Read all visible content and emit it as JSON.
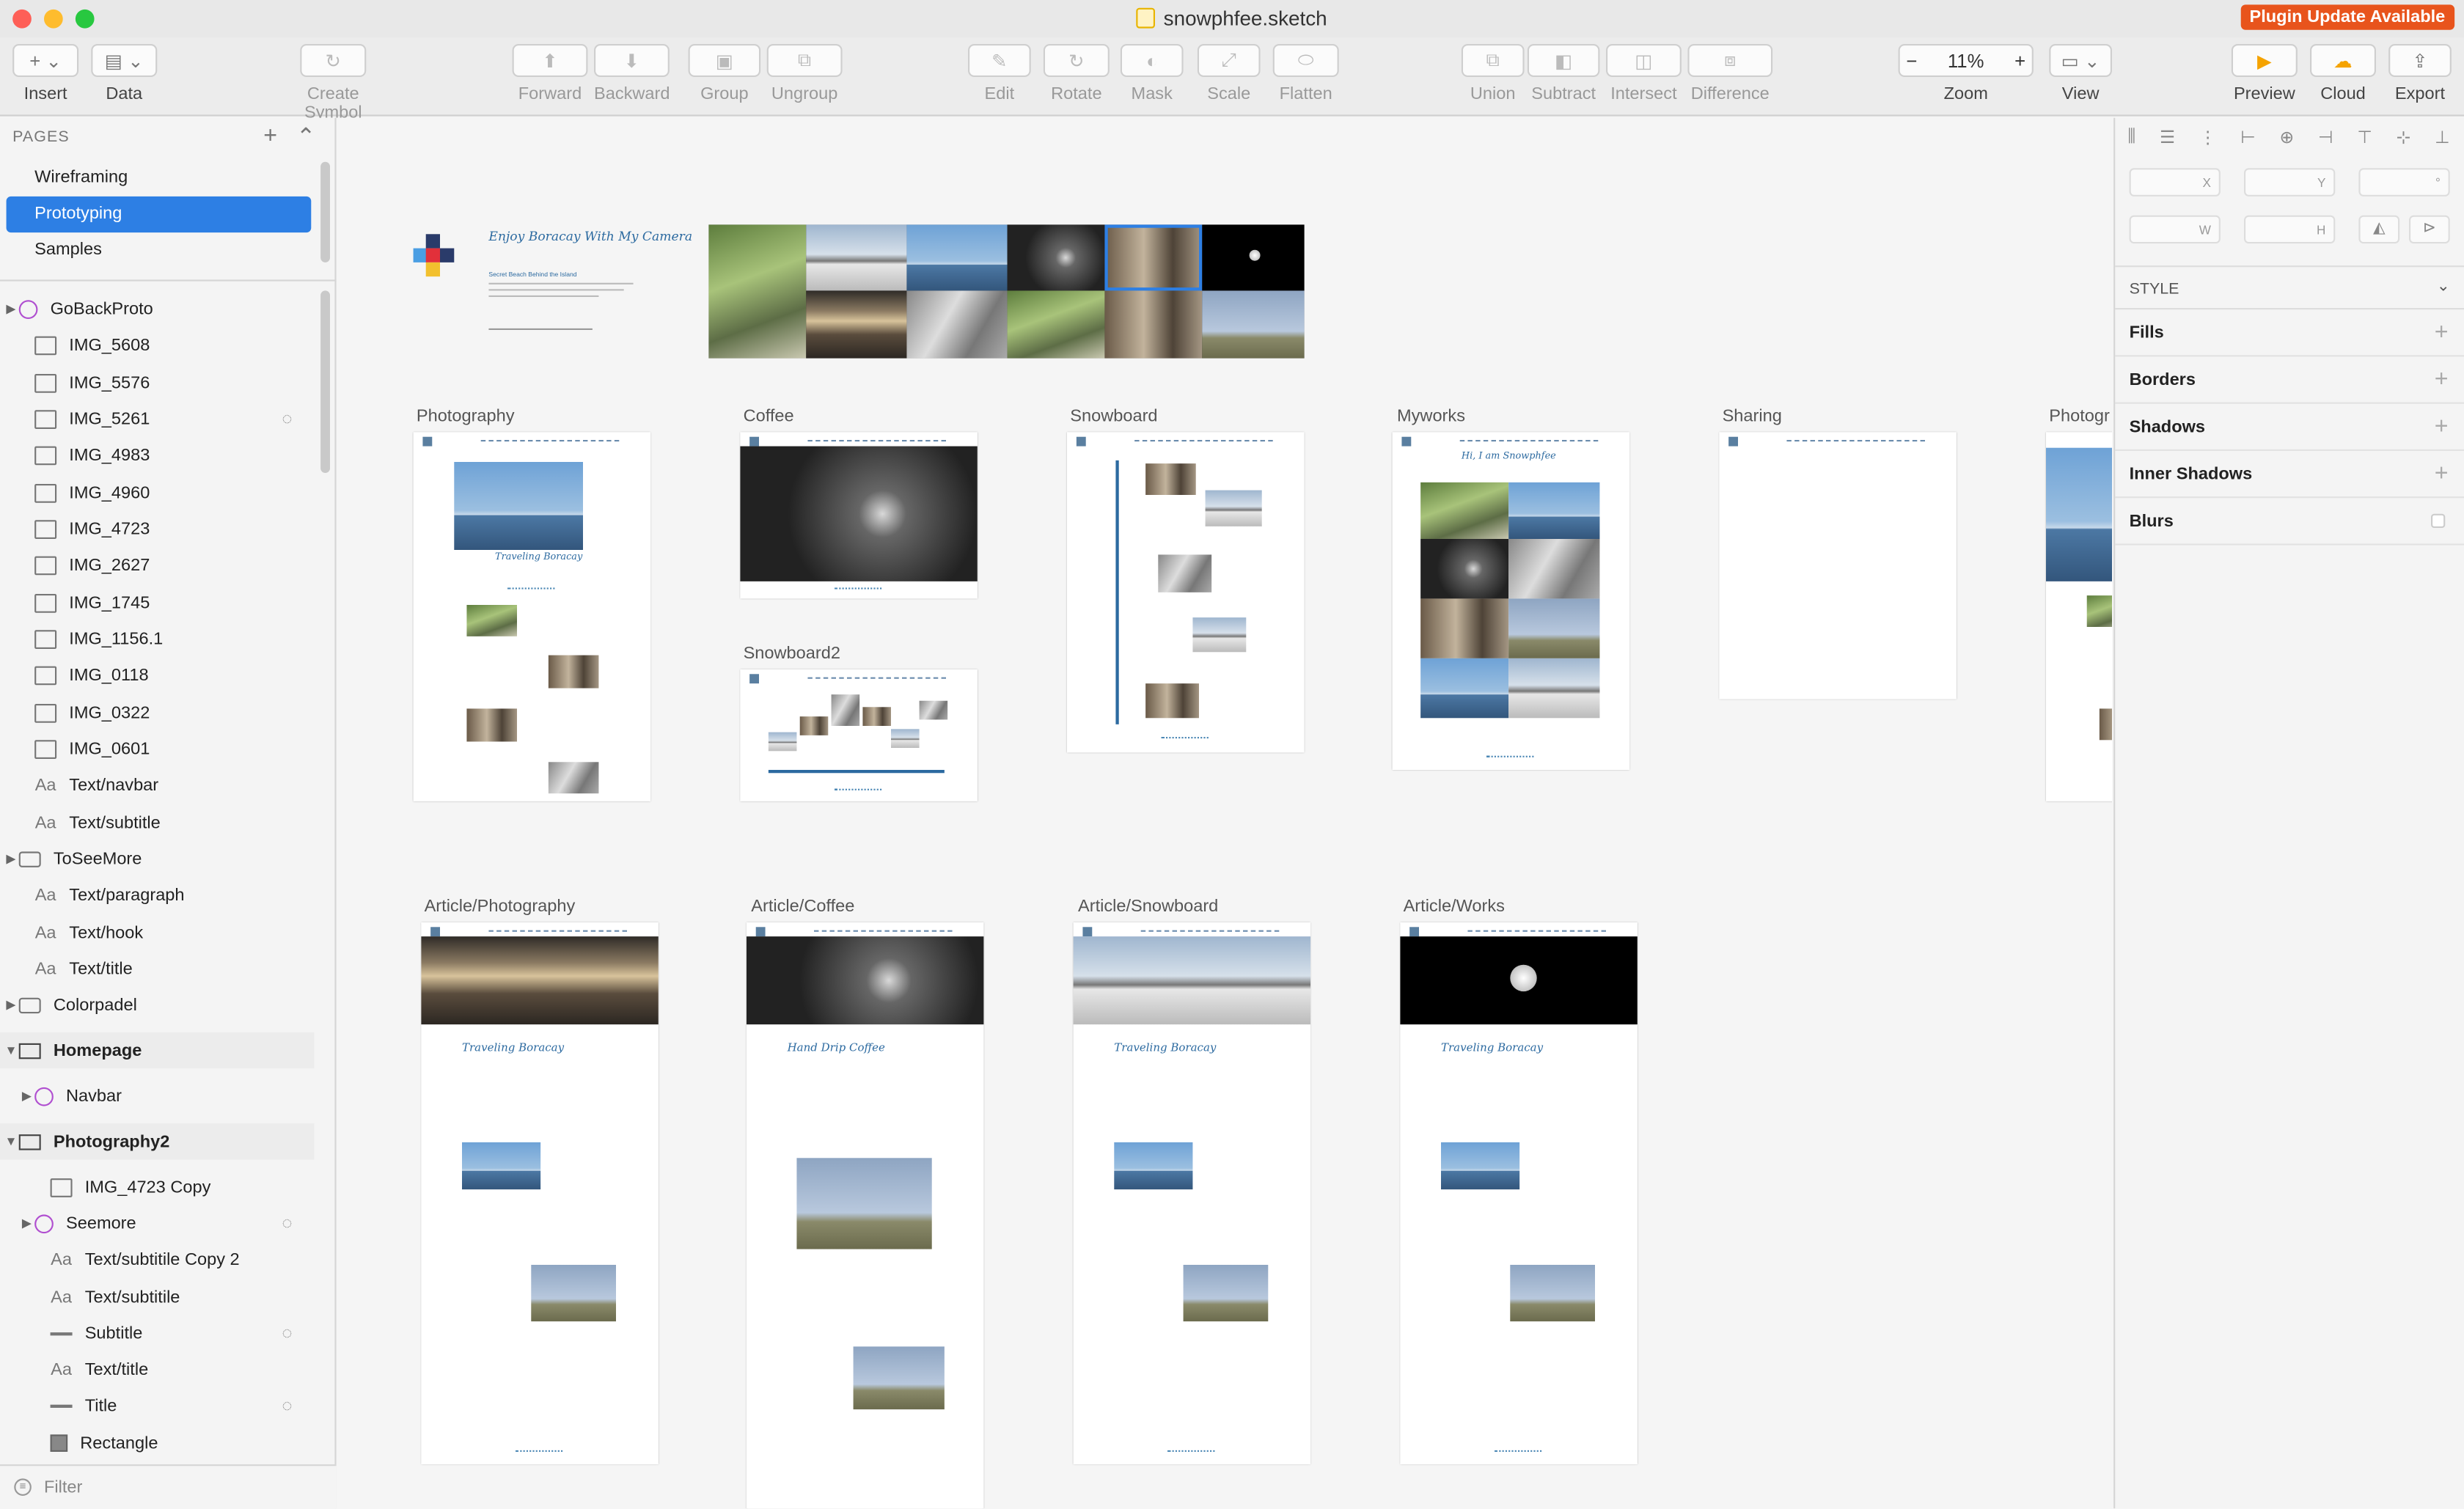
{
  "window": {
    "title": "snowphfee.sketch",
    "plugin_badge": "Plugin Update Available"
  },
  "toolbar": {
    "insert": "Insert",
    "data": "Data",
    "create_symbol": "Create Symbol",
    "forward": "Forward",
    "backward": "Backward",
    "group": "Group",
    "ungroup": "Ungroup",
    "edit": "Edit",
    "rotate": "Rotate",
    "mask": "Mask",
    "scale": "Scale",
    "flatten": "Flatten",
    "union": "Union",
    "subtract": "Subtract",
    "intersect": "Intersect",
    "difference": "Difference",
    "zoom_value": "11%",
    "zoom": "Zoom",
    "view": "View",
    "preview": "Preview",
    "cloud": "Cloud",
    "export": "Export",
    "zoom_minus": "−",
    "zoom_plus": "+",
    "insert_glyph": "+",
    "chevron": "⌄"
  },
  "pages": {
    "heading": "PAGES",
    "add": "+",
    "collapse": "⌃",
    "items": [
      {
        "label": "Wireframing"
      },
      {
        "label": "Prototyping"
      },
      {
        "label": "Samples"
      }
    ]
  },
  "layers": [
    {
      "label": "GoBackProto"
    },
    {
      "label": "IMG_5608"
    },
    {
      "label": "IMG_5576"
    },
    {
      "label": "IMG_5261"
    },
    {
      "label": "IMG_4983"
    },
    {
      "label": "IMG_4960"
    },
    {
      "label": "IMG_4723"
    },
    {
      "label": "IMG_2627"
    },
    {
      "label": "IMG_1745"
    },
    {
      "label": "IMG_1156.1"
    },
    {
      "label": "IMG_0118"
    },
    {
      "label": "IMG_0322"
    },
    {
      "label": "IMG_0601"
    },
    {
      "label": "Text/navbar"
    },
    {
      "label": "Text/subtitle"
    },
    {
      "label": "ToSeeMore"
    },
    {
      "label": "Text/paragraph"
    },
    {
      "label": "Text/hook"
    },
    {
      "label": "Text/title"
    },
    {
      "label": "Colorpadel"
    },
    {
      "label": "Homepage"
    },
    {
      "label": "Navbar"
    },
    {
      "label": "Photography2"
    },
    {
      "label": "IMG_4723 Copy"
    },
    {
      "label": "Seemore"
    },
    {
      "label": "Text/subtitile Copy 2"
    },
    {
      "label": "Text/subtitile"
    },
    {
      "label": "Subtitle"
    },
    {
      "label": "Text/title"
    },
    {
      "label": "Title"
    },
    {
      "label": "Rectangle"
    }
  ],
  "layer_glyphs": {
    "text": "Aa",
    "hidden": "◌"
  },
  "filter": {
    "placeholder": "Filter"
  },
  "canvas": {
    "hero_title": "Enjoy Boracay With My Camera",
    "hero_subtitle": "Secret Beach Behind the Island",
    "artboards": {
      "photography": "Photography",
      "coffee": "Coffee",
      "snowboard": "Snowboard",
      "snowboard2": "Snowboard2",
      "myworks": "Myworks",
      "sharing": "Sharing",
      "photography_clipped": "Photogr",
      "article_photography": "Article/Photography",
      "article_coffee": "Article/Coffee",
      "article_snowboard": "Article/Snowboard",
      "article_works": "Article/Works"
    },
    "photo_title": "Traveling Boracay",
    "myworks_title": "Hi, I am Snowphfee",
    "coffee_title": "Hand Drip Coffee"
  },
  "inspector": {
    "x": "X",
    "y": "Y",
    "deg": "°",
    "w": "W",
    "h": "H",
    "style": "STYLE",
    "sections": [
      {
        "label": "Fills"
      },
      {
        "label": "Borders"
      },
      {
        "label": "Shadows"
      },
      {
        "label": "Inner Shadows"
      },
      {
        "label": "Blurs"
      }
    ],
    "plus": "+"
  },
  "colors": {
    "accent": "#2d7fe4",
    "plugin": "#e8541c",
    "brand_teal": "#2c6aa0"
  }
}
